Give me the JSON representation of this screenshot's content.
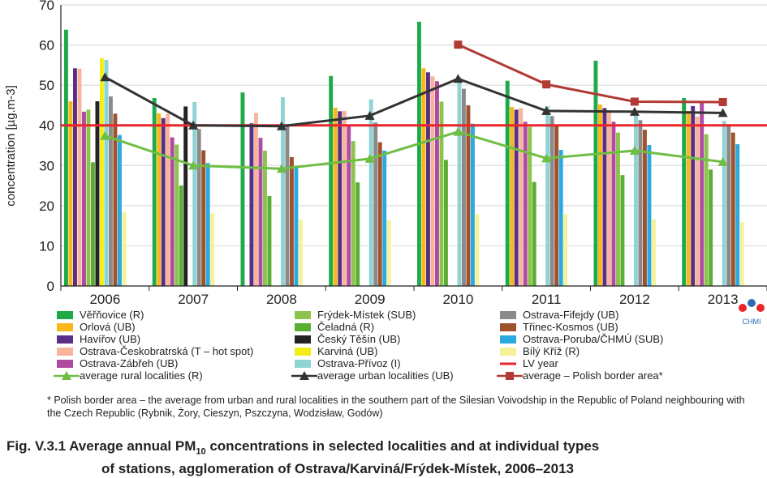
{
  "chart_data": {
    "type": "bar",
    "ylabel": "concentration [µg.m-3]",
    "ylim": [
      0,
      70
    ],
    "yticks": [
      0,
      10,
      20,
      30,
      40,
      50,
      60,
      70
    ],
    "categories": [
      "2006",
      "2007",
      "2008",
      "2009",
      "2010",
      "2011",
      "2012",
      "2013"
    ],
    "series": [
      {
        "name": "Věřňovice (R)",
        "color": "#1faa4a",
        "values": [
          63.8,
          46.8,
          48.2,
          52.3,
          65.8,
          51.1,
          56.1,
          46.8
        ]
      },
      {
        "name": "Orlová (UB)",
        "color": "#f7b818",
        "values": [
          46,
          43,
          null,
          44.4,
          54.2,
          44.6,
          45.2,
          43.6
        ]
      },
      {
        "name": "Havířov (UB)",
        "color": "#5a2d86",
        "values": [
          54.2,
          41.8,
          40.5,
          43.5,
          53.2,
          43.9,
          44.3,
          44.8
        ]
      },
      {
        "name": "Ostrava-Českobratrská (T – hot spot)",
        "color": "#f7b49a",
        "values": [
          54.1,
          42.9,
          43.1,
          43.6,
          52.2,
          44.3,
          43.2,
          42.2
        ]
      },
      {
        "name": "Ostrava-Zábřeh (UB)",
        "color": "#b04ba2",
        "values": [
          43.4,
          37,
          36.9,
          39.9,
          51,
          40.9,
          40.9,
          45.6
        ]
      },
      {
        "name": "Frýdek-Místek (SUB)",
        "color": "#8cc34b",
        "values": [
          43.9,
          35.2,
          33.7,
          36.1,
          45.9,
          39.6,
          38.2,
          37.8
        ]
      },
      {
        "name": "Čeladná (R)",
        "color": "#5aae33",
        "values": [
          30.8,
          25,
          22.4,
          25.8,
          31.4,
          25.9,
          27.6,
          29
        ]
      },
      {
        "name": "Český Těšín (UB)",
        "color": "#222222",
        "values": [
          46,
          44.7,
          null,
          null,
          null,
          null,
          null,
          null
        ]
      },
      {
        "name": "Karviná (UB)",
        "color": "#f2ee19",
        "values": [
          56.7,
          null,
          null,
          null,
          null,
          null,
          null,
          null
        ]
      },
      {
        "name": "Ostrava-Přívoz (I)",
        "color": "#8fd3d4",
        "values": [
          56.3,
          45.8,
          47,
          46.5,
          52,
          44.8,
          43.5,
          41.1
        ]
      },
      {
        "name": "Ostrava-Fifejdy (UB)",
        "color": "#8a8a8a",
        "values": [
          47.2,
          39.1,
          39.9,
          40.7,
          49.1,
          42.3,
          41.3,
          40.3
        ]
      },
      {
        "name": "Třinec-Kosmos (UB)",
        "color": "#a0522d",
        "values": [
          42.9,
          33.8,
          32.1,
          35.8,
          45,
          40.2,
          38.9,
          38.2
        ]
      },
      {
        "name": "Ostrava-Poruba/ČHMÚ (SUB)",
        "color": "#29abe2",
        "values": [
          37.6,
          30.6,
          29.5,
          33.7,
          40.4,
          33.9,
          35.1,
          35.3
        ]
      },
      {
        "name": "Bílý Kříž (R)",
        "color": "#f6f29a",
        "values": [
          18.4,
          18.1,
          16.6,
          16.4,
          17.9,
          17.9,
          16.6,
          15.9
        ]
      }
    ],
    "lines": [
      {
        "name": "average rural localities (R)",
        "color": "#6fbe44",
        "marker": "triangle",
        "values": [
          37.4,
          30,
          29.2,
          31.7,
          38.4,
          31.8,
          33.7,
          30.9
        ]
      },
      {
        "name": "average urban localities (UB)",
        "color": "#333333",
        "marker": "triangle",
        "values": [
          52,
          40,
          39.8,
          42.4,
          51.6,
          43.6,
          43.4,
          43.1
        ]
      },
      {
        "name": "average  – Polish border area*",
        "color": "#b23a34",
        "marker": "square",
        "values": [
          null,
          null,
          null,
          null,
          60.1,
          50.2,
          45.9,
          45.8
        ]
      }
    ],
    "reference_line": {
      "name": "LV year",
      "value": 40,
      "color": "#e8262b"
    },
    "legend_order": [
      [
        "Věřňovice (R)",
        "Frýdek-Místek (SUB)",
        "Ostrava-Fifejdy (UB)"
      ],
      [
        "Orlová (UB)",
        "Čeladná (R)",
        "Třinec-Kosmos (UB)"
      ],
      [
        "Havířov (UB)",
        "Český Těšín (UB)",
        "Ostrava-Poruba/ČHMÚ (SUB)"
      ],
      [
        "Ostrava-Českobratrská (T – hot spot)",
        "Karviná (UB)",
        "Bílý Kříž (R)"
      ],
      [
        "Ostrava-Zábřeh (UB)",
        "Ostrava-Přívoz (I)",
        "LV year"
      ],
      [
        "average rural localities (R)",
        "average urban localities (UB)",
        "average  – Polish border area*"
      ]
    ],
    "legend_placement": "bottom"
  },
  "logo_text": "CHMI",
  "footnote": "* Polish border area – the average from urban and rural localities in the southern part of the Silesian Voivodship in the Republic of Poland neighbouring with the Czech Republic (Rybnik, Żory, Cieszyn, Pszczyna, Wodzisław, Godów)",
  "caption": {
    "prefix": "Fig. V.3.1  Average annual PM",
    "subscript": "10",
    "line1_suffix": " concentrations in selected localities and at individual types",
    "line2": "of stations, agglomeration of Ostrava/Karviná/Frýdek-Místek, 2006–2013"
  }
}
